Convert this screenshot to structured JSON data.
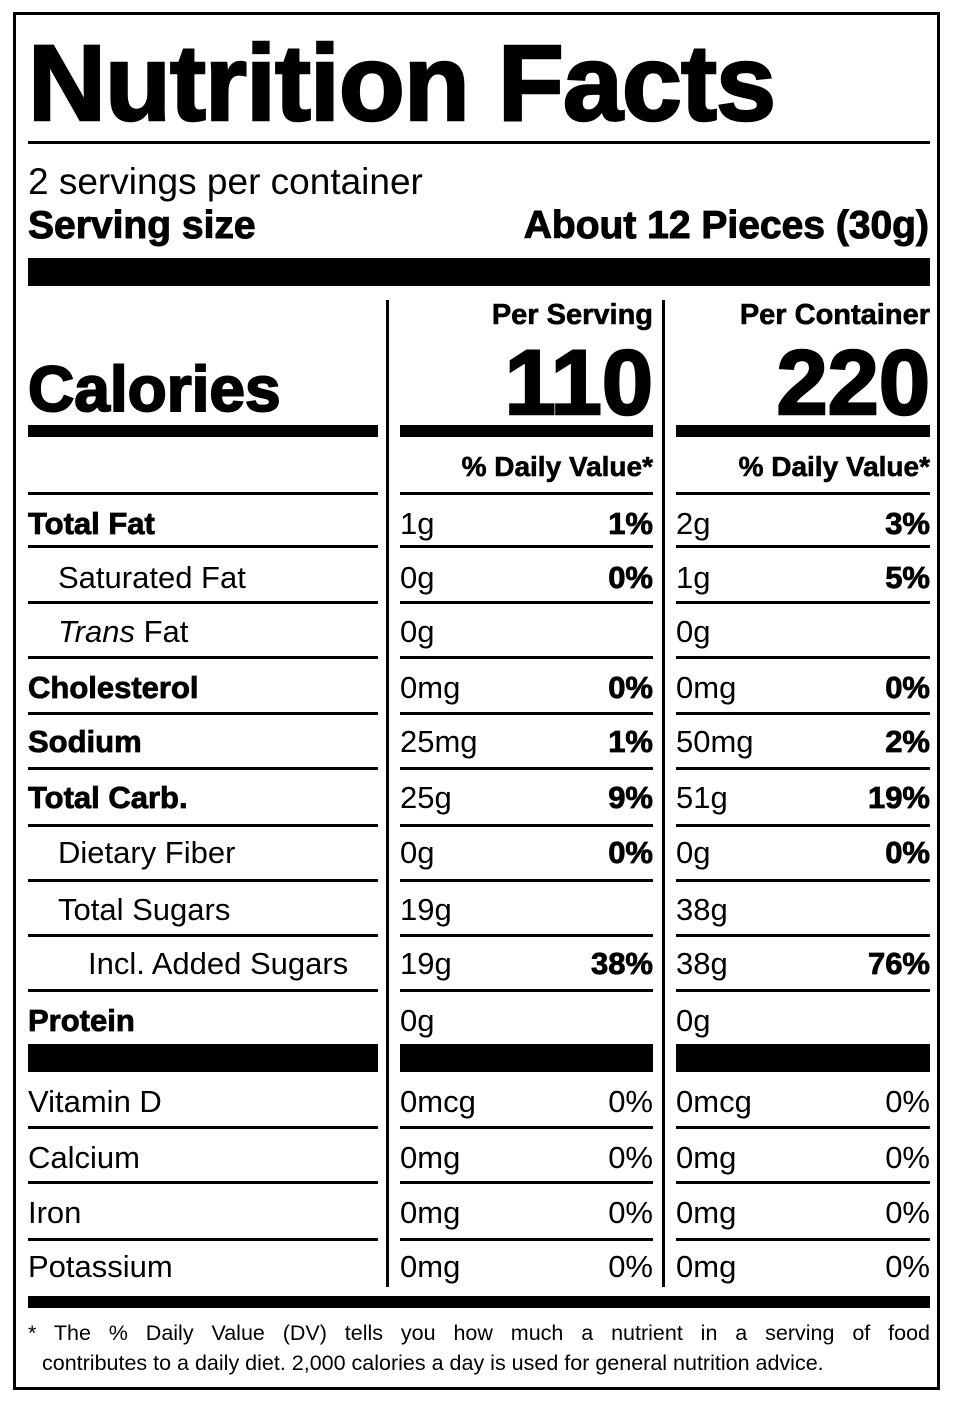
{
  "label": {
    "title": "Nutrition Facts",
    "servings_per_container": "2 servings per container",
    "serving_size_label": "Serving size",
    "serving_size_value": "About 12 Pieces (30g)",
    "calories_label": "Calories",
    "columns": [
      {
        "heading": "Per Serving",
        "calories": "110",
        "dv_heading": "% Daily Value*"
      },
      {
        "heading": "Per Container",
        "calories": "220",
        "dv_heading": "% Daily Value*"
      }
    ],
    "nutrients": [
      {
        "name": "Total Fat",
        "bold": true,
        "serving_amount": "1g",
        "serving_dv": "1%",
        "container_amount": "2g",
        "container_dv": "3%"
      },
      {
        "name": "Saturated Fat",
        "bold": false,
        "indent": 1,
        "serving_amount": "0g",
        "serving_dv": "0%",
        "container_amount": "1g",
        "container_dv": "5%"
      },
      {
        "name_italic": "Trans",
        "name": " Fat",
        "bold": false,
        "indent": 1,
        "serving_amount": "0g",
        "serving_dv": "",
        "container_amount": "0g",
        "container_dv": ""
      },
      {
        "name": "Cholesterol",
        "bold": true,
        "serving_amount": "0mg",
        "serving_dv": "0%",
        "container_amount": "0mg",
        "container_dv": "0%"
      },
      {
        "name": "Sodium",
        "bold": true,
        "serving_amount": "25mg",
        "serving_dv": "1%",
        "container_amount": "50mg",
        "container_dv": "2%"
      },
      {
        "name": "Total Carb.",
        "bold": true,
        "serving_amount": "25g",
        "serving_dv": "9%",
        "container_amount": "51g",
        "container_dv": "19%"
      },
      {
        "name": "Dietary Fiber",
        "bold": false,
        "indent": 1,
        "serving_amount": "0g",
        "serving_dv": "0%",
        "container_amount": "0g",
        "container_dv": "0%"
      },
      {
        "name": "Total Sugars",
        "bold": false,
        "indent": 1,
        "serving_amount": "19g",
        "serving_dv": "",
        "container_amount": "38g",
        "container_dv": ""
      },
      {
        "name": "Incl. Added Sugars",
        "bold": false,
        "indent": 2,
        "serving_amount": "19g",
        "serving_dv": "38%",
        "container_amount": "38g",
        "container_dv": "76%"
      },
      {
        "name": "Protein",
        "bold": true,
        "serving_amount": "0g",
        "serving_dv": "",
        "container_amount": "0g",
        "container_dv": ""
      }
    ],
    "vitamins": [
      {
        "name": "Vitamin D",
        "serving_amount": "0mcg",
        "serving_dv": "0%",
        "container_amount": "0mcg",
        "container_dv": "0%"
      },
      {
        "name": "Calcium",
        "serving_amount": "0mg",
        "serving_dv": "0%",
        "container_amount": "0mg",
        "container_dv": "0%"
      },
      {
        "name": "Iron",
        "serving_amount": "0mg",
        "serving_dv": "0%",
        "container_amount": "0mg",
        "container_dv": "0%"
      },
      {
        "name": "Potassium",
        "serving_amount": "0mg",
        "serving_dv": "0%",
        "container_amount": "0mg",
        "container_dv": "0%"
      }
    ],
    "footnote_line1": "* The % Daily Value (DV) tells you how much a nutrient in a serving of food",
    "footnote_line2": "contributes to a daily diet. 2,000 calories a day is used for general nutrition advice."
  }
}
